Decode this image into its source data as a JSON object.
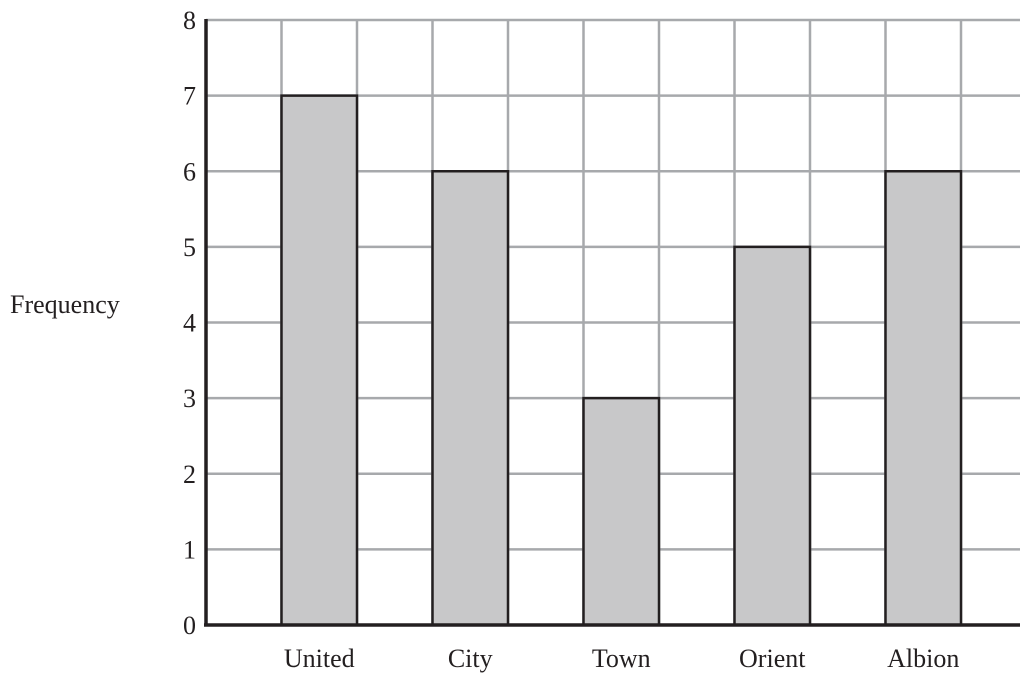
{
  "chart_data": {
    "type": "bar",
    "categories": [
      "United",
      "City",
      "Town",
      "Orient",
      "Albion"
    ],
    "values": [
      7,
      6,
      3,
      5,
      6
    ],
    "title": "",
    "xlabel": "",
    "ylabel": "Frequency",
    "ylim": [
      0,
      8
    ],
    "yticks": [
      "0",
      "1",
      "2",
      "3",
      "4",
      "5",
      "6",
      "7",
      "8"
    ],
    "grid": true,
    "bar_color": "#c8c8c9",
    "bar_edge_color": "#231f20",
    "grid_color": "#a7a9ac",
    "axis_color": "#231f20"
  }
}
